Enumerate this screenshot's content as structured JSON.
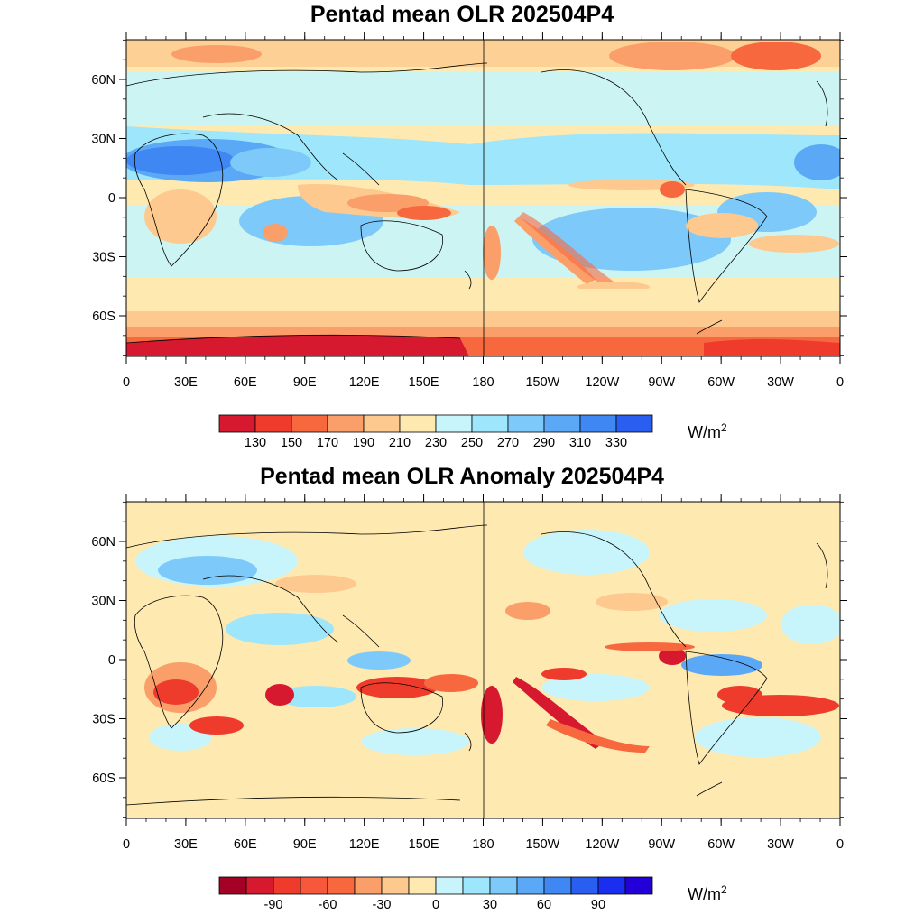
{
  "panels": [
    {
      "title": "Pentad mean OLR 202504P4",
      "lat_labels": [
        "60N",
        "30N",
        "0",
        "30S",
        "60S"
      ],
      "lon_labels": [
        "0",
        "30E",
        "60E",
        "90E",
        "120E",
        "150E",
        "180",
        "150W",
        "120W",
        "90W",
        "60W",
        "30W",
        "0"
      ],
      "colorbar": {
        "colors": [
          "#d7192f",
          "#ef3b2c",
          "#f7683f",
          "#fa9e6a",
          "#fdc98f",
          "#fee9b1",
          "#c7f5fb",
          "#9de6fb",
          "#7dcafa",
          "#5aa8f6",
          "#3f87f2",
          "#2a5ef0"
        ],
        "tick_labels": [
          "130",
          "150",
          "170",
          "190",
          "210",
          "230",
          "250",
          "270",
          "290",
          "310",
          "330"
        ],
        "unit": "W/m",
        "unit_sup": "2"
      }
    },
    {
      "title": "Pentad mean OLR Anomaly 202504P4",
      "lat_labels": [
        "60N",
        "30N",
        "0",
        "30S",
        "60S"
      ],
      "lon_labels": [
        "0",
        "30E",
        "60E",
        "90E",
        "120E",
        "150E",
        "180",
        "150W",
        "120W",
        "90W",
        "60W",
        "30W",
        "0"
      ],
      "colorbar": {
        "colors": [
          "#a50026",
          "#d7192f",
          "#ef3b2c",
          "#f7583c",
          "#f7683f",
          "#fa9e6a",
          "#fdc98f",
          "#fee9b1",
          "#c7f5fb",
          "#9de6fb",
          "#7dcafa",
          "#5aa8f6",
          "#3f87f2",
          "#2a5ef0",
          "#1a2ef0",
          "#2400d8"
        ],
        "tick_labels": [
          "-90",
          "-60",
          "-30",
          "0",
          "30",
          "60",
          "90"
        ],
        "unit": "W/m",
        "unit_sup": "2"
      }
    }
  ]
}
